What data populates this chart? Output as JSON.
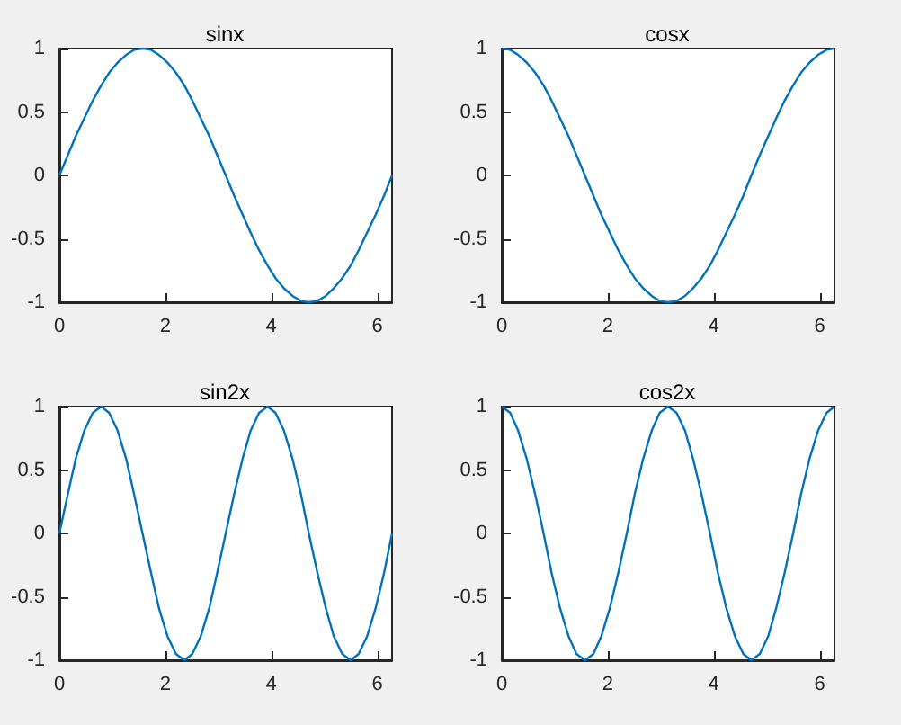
{
  "chart_data": [
    {
      "type": "line",
      "title": "sinx",
      "color": "#0072bd",
      "xlim": [
        0,
        6.28
      ],
      "ylim": [
        -1,
        1
      ],
      "xticks": [
        0,
        2,
        4,
        6
      ],
      "yticks": [
        -1,
        -0.5,
        0,
        0.5,
        1
      ],
      "x": [
        0,
        0.16,
        0.31,
        0.47,
        0.63,
        0.79,
        0.94,
        1.1,
        1.26,
        1.41,
        1.57,
        1.73,
        1.88,
        2.04,
        2.2,
        2.36,
        2.51,
        2.67,
        2.83,
        2.98,
        3.14,
        3.3,
        3.46,
        3.61,
        3.77,
        3.93,
        4.08,
        4.24,
        4.4,
        4.56,
        4.71,
        4.87,
        5.03,
        5.18,
        5.34,
        5.5,
        5.65,
        5.81,
        5.97,
        6.13,
        6.28
      ],
      "values": [
        0,
        0.16,
        0.31,
        0.45,
        0.59,
        0.71,
        0.81,
        0.89,
        0.95,
        0.99,
        1,
        0.99,
        0.95,
        0.89,
        0.81,
        0.71,
        0.59,
        0.45,
        0.31,
        0.16,
        0,
        -0.16,
        -0.31,
        -0.45,
        -0.59,
        -0.71,
        -0.81,
        -0.89,
        -0.95,
        -0.99,
        -1,
        -0.99,
        -0.95,
        -0.89,
        -0.81,
        -0.71,
        -0.59,
        -0.45,
        -0.31,
        -0.16,
        0
      ]
    },
    {
      "type": "line",
      "title": "cosx",
      "color": "#0072bd",
      "xlim": [
        0,
        6.28
      ],
      "ylim": [
        -1,
        1
      ],
      "xticks": [
        0,
        2,
        4,
        6
      ],
      "yticks": [
        -1,
        -0.5,
        0,
        0.5,
        1
      ],
      "x": [
        0,
        0.16,
        0.31,
        0.47,
        0.63,
        0.79,
        0.94,
        1.1,
        1.26,
        1.41,
        1.57,
        1.73,
        1.88,
        2.04,
        2.2,
        2.36,
        2.51,
        2.67,
        2.83,
        2.98,
        3.14,
        3.3,
        3.46,
        3.61,
        3.77,
        3.93,
        4.08,
        4.24,
        4.4,
        4.56,
        4.71,
        4.87,
        5.03,
        5.18,
        5.34,
        5.5,
        5.65,
        5.81,
        5.97,
        6.13,
        6.28
      ],
      "values": [
        1,
        0.99,
        0.95,
        0.89,
        0.81,
        0.71,
        0.59,
        0.45,
        0.31,
        0.16,
        0,
        -0.16,
        -0.31,
        -0.45,
        -0.59,
        -0.71,
        -0.81,
        -0.89,
        -0.95,
        -0.99,
        -1,
        -0.99,
        -0.95,
        -0.89,
        -0.81,
        -0.71,
        -0.59,
        -0.45,
        -0.31,
        -0.16,
        0,
        0.16,
        0.31,
        0.45,
        0.59,
        0.71,
        0.81,
        0.89,
        0.95,
        0.99,
        1
      ]
    },
    {
      "type": "line",
      "title": "sin2x",
      "color": "#0072bd",
      "xlim": [
        0,
        6.28
      ],
      "ylim": [
        -1,
        1
      ],
      "xticks": [
        0,
        2,
        4,
        6
      ],
      "yticks": [
        -1,
        -0.5,
        0,
        0.5,
        1
      ],
      "x": [
        0,
        0.16,
        0.31,
        0.47,
        0.63,
        0.79,
        0.94,
        1.1,
        1.26,
        1.41,
        1.57,
        1.73,
        1.88,
        2.04,
        2.2,
        2.36,
        2.51,
        2.67,
        2.83,
        2.98,
        3.14,
        3.3,
        3.46,
        3.61,
        3.77,
        3.93,
        4.08,
        4.24,
        4.4,
        4.56,
        4.71,
        4.87,
        5.03,
        5.18,
        5.34,
        5.5,
        5.65,
        5.81,
        5.97,
        6.13,
        6.28
      ],
      "values": [
        0,
        0.31,
        0.59,
        0.81,
        0.95,
        1,
        0.95,
        0.81,
        0.59,
        0.31,
        0,
        -0.31,
        -0.59,
        -0.81,
        -0.95,
        -1,
        -0.95,
        -0.81,
        -0.59,
        -0.31,
        0,
        0.31,
        0.59,
        0.81,
        0.95,
        1,
        0.95,
        0.81,
        0.59,
        0.31,
        0,
        -0.31,
        -0.59,
        -0.81,
        -0.95,
        -1,
        -0.95,
        -0.81,
        -0.59,
        -0.31,
        0
      ]
    },
    {
      "type": "line",
      "title": "cos2x",
      "color": "#0072bd",
      "xlim": [
        0,
        6.28
      ],
      "ylim": [
        -1,
        1
      ],
      "xticks": [
        0,
        2,
        4,
        6
      ],
      "yticks": [
        -1,
        -0.5,
        0,
        0.5,
        1
      ],
      "x": [
        0,
        0.16,
        0.31,
        0.47,
        0.63,
        0.79,
        0.94,
        1.1,
        1.26,
        1.41,
        1.57,
        1.73,
        1.88,
        2.04,
        2.2,
        2.36,
        2.51,
        2.67,
        2.83,
        2.98,
        3.14,
        3.3,
        3.46,
        3.61,
        3.77,
        3.93,
        4.08,
        4.24,
        4.4,
        4.56,
        4.71,
        4.87,
        5.03,
        5.18,
        5.34,
        5.5,
        5.65,
        5.81,
        5.97,
        6.13,
        6.28
      ],
      "values": [
        1,
        0.95,
        0.81,
        0.59,
        0.31,
        0,
        -0.31,
        -0.59,
        -0.81,
        -0.95,
        -1,
        -0.95,
        -0.81,
        -0.59,
        -0.31,
        0,
        0.31,
        0.59,
        0.81,
        0.95,
        1,
        0.95,
        0.81,
        0.59,
        0.31,
        0,
        -0.31,
        -0.59,
        -0.81,
        -0.95,
        -1,
        -0.95,
        -0.81,
        -0.59,
        -0.31,
        0,
        0.31,
        0.59,
        0.81,
        0.95,
        1
      ]
    }
  ]
}
